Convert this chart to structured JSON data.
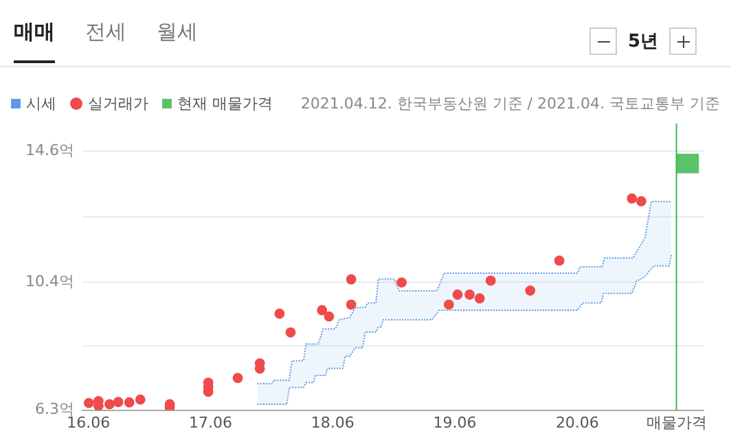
{
  "chart_data": {
    "type": "scatter",
    "annotations": [
      "매매",
      "전세",
      "월세",
      "5년",
      "2021.04.12. 한국부동산원 기준 / 2021.04. 국토교통부 기준"
    ],
    "xlim": [
      "2016-05-14",
      "2021-06-13"
    ],
    "xticks": [
      {
        "value": "2016-06",
        "label": "16.06"
      },
      {
        "value": "2017-06",
        "label": "17.06"
      },
      {
        "value": "2018-06",
        "label": "18.06"
      },
      {
        "value": "2019-06",
        "label": "19.06"
      },
      {
        "value": "2020-06",
        "label": "20.06"
      },
      {
        "value": "2021-03-24",
        "label": "매물가격"
      }
    ],
    "ylim": [
      6.3,
      14.6
    ],
    "yticks": [
      {
        "value": 6.3,
        "label": "6.3억"
      },
      {
        "value": 8.35,
        "label": null
      },
      {
        "value": 10.4,
        "label": "10.4억"
      },
      {
        "value": 12.5,
        "label": null
      },
      {
        "value": 14.6,
        "label": "14.6억"
      }
    ],
    "grid": "y",
    "legend": "top left",
    "ref_lines": [
      {
        "axis": "x",
        "value": "2021-03-24",
        "color": "#3cb94a"
      }
    ],
    "series": [
      {
        "name": "시세",
        "type": "line",
        "color": "#5b9be6",
        "line_style": "dotted",
        "x": [
          "2017-10-19",
          "2017-12-02",
          "2017-12-06",
          "2018-01-15",
          "2018-01-22",
          "2018-01-30",
          "2018-03-06",
          "2018-03-13",
          "2018-04-04",
          "2018-04-11",
          "2018-04-19",
          "2018-05-03",
          "2018-05-10",
          "2018-05-17",
          "2018-06-09",
          "2018-06-20",
          "2018-07-01",
          "2018-07-08",
          "2018-07-22",
          "2018-08-07",
          "2018-08-29",
          "2018-09-06",
          "2018-09-13",
          "2018-10-08",
          "2018-10-15",
          "2018-10-23",
          "2018-10-30",
          "2018-12-02",
          "2018-12-17",
          "2019-03-24",
          "2019-04-08",
          "2019-04-15",
          "2019-04-30",
          "2020-06-02",
          "2020-06-09",
          "2020-06-16",
          "2020-08-11",
          "2020-08-14",
          "2020-08-18",
          "2020-08-21",
          "2020-11-11",
          "2020-11-14",
          "2020-11-25",
          "2020-12-20",
          "2021-01-08",
          "2021-01-15",
          "2021-03-02",
          "2021-03-09"
        ],
        "values": [
          7.15,
          7.15,
          7.26,
          7.26,
          7.26,
          7.88,
          7.88,
          8.42,
          8.42,
          8.42,
          8.42,
          8.9,
          8.9,
          8.9,
          8.9,
          9.19,
          9.22,
          9.24,
          9.27,
          9.59,
          9.59,
          9.59,
          9.73,
          9.73,
          10.5,
          10.5,
          10.5,
          10.5,
          10.12,
          10.12,
          10.12,
          10.3,
          10.69,
          10.69,
          10.89,
          10.89,
          10.89,
          10.89,
          11.05,
          11.17,
          11.17,
          11.17,
          11.37,
          11.82,
          12.98,
          12.98,
          12.98,
          12.98
        ],
        "upper": [
          7.15,
          7.15,
          7.26,
          7.26,
          7.26,
          7.88,
          7.88,
          8.42,
          8.42,
          8.42,
          8.42,
          8.9,
          8.9,
          8.9,
          8.9,
          9.19,
          9.22,
          9.24,
          9.27,
          9.59,
          9.59,
          9.59,
          9.73,
          9.73,
          10.5,
          10.5,
          10.5,
          10.5,
          10.12,
          10.12,
          10.12,
          10.3,
          10.69,
          10.69,
          10.89,
          10.89,
          10.89,
          10.89,
          11.05,
          11.17,
          11.17,
          11.17,
          11.37,
          11.82,
          12.98,
          12.98,
          12.98,
          12.98
        ],
        "lower": [
          6.49,
          6.49,
          6.49,
          6.49,
          7.03,
          7.03,
          7.03,
          7.18,
          7.18,
          7.41,
          7.41,
          7.41,
          7.41,
          7.64,
          7.64,
          7.64,
          7.64,
          8.03,
          8.03,
          8.29,
          8.29,
          8.8,
          8.8,
          8.8,
          8.96,
          8.96,
          9.19,
          9.19,
          9.19,
          9.19,
          9.4,
          9.5,
          9.5,
          9.5,
          9.62,
          9.73,
          9.73,
          9.86,
          10.04,
          10.04,
          10.04,
          10.12,
          10.43,
          10.58,
          10.83,
          10.92,
          10.92,
          11.27
        ]
      },
      {
        "type": "line",
        "color": "#5b9be6",
        "line_style": "dotted",
        "x": [
          "2017-10-19",
          "2017-12-02",
          "2017-12-06",
          "2018-01-15",
          "2018-01-22",
          "2018-01-30",
          "2018-03-06",
          "2018-03-13",
          "2018-04-04",
          "2018-04-11",
          "2018-04-19",
          "2018-05-03",
          "2018-05-10",
          "2018-05-17",
          "2018-06-09",
          "2018-06-20",
          "2018-07-01",
          "2018-07-08",
          "2018-07-22",
          "2018-08-07",
          "2018-08-29",
          "2018-09-06",
          "2018-09-13",
          "2018-10-08",
          "2018-10-15",
          "2018-10-23",
          "2018-10-30",
          "2018-12-02",
          "2018-12-17",
          "2019-03-24",
          "2019-04-08",
          "2019-04-15",
          "2019-04-30",
          "2020-06-02",
          "2020-06-09",
          "2020-06-16",
          "2020-08-11",
          "2020-08-14",
          "2020-08-18",
          "2020-08-21",
          "2020-11-11",
          "2020-11-14",
          "2020-11-25",
          "2020-12-20",
          "2021-01-08",
          "2021-01-15",
          "2021-03-02",
          "2021-03-09"
        ],
        "values": [
          6.49,
          6.49,
          6.49,
          6.49,
          7.03,
          7.03,
          7.03,
          7.18,
          7.18,
          7.41,
          7.41,
          7.41,
          7.41,
          7.64,
          7.64,
          7.64,
          7.64,
          8.03,
          8.03,
          8.29,
          8.29,
          8.8,
          8.8,
          8.8,
          8.96,
          8.96,
          9.19,
          9.19,
          9.19,
          9.19,
          9.4,
          9.5,
          9.5,
          9.5,
          9.62,
          9.73,
          9.73,
          9.86,
          10.04,
          10.04,
          10.04,
          10.12,
          10.43,
          10.58,
          10.83,
          10.92,
          10.92,
          11.27
        ]
      },
      {
        "name": "실거래가",
        "color": "#f04a4a",
        "marker": "circle",
        "x": [
          "2016-06-02",
          "2016-07-01",
          "2016-07-01",
          "2016-08-03",
          "2016-08-29",
          "2016-10-01",
          "2016-11-03",
          "2017-01-30",
          "2017-01-30",
          "2017-05-25",
          "2017-05-25",
          "2017-05-25",
          "2017-08-21",
          "2017-10-26",
          "2017-10-26",
          "2017-12-24",
          "2018-01-26",
          "2018-04-30",
          "2018-05-21",
          "2018-07-26",
          "2018-07-26",
          "2018-12-24",
          "2019-05-14",
          "2019-06-09",
          "2019-07-15",
          "2019-08-14",
          "2019-09-16",
          "2020-01-12",
          "2020-04-08",
          "2020-11-11",
          "2020-12-09"
        ],
        "values": [
          6.53,
          6.59,
          6.44,
          6.49,
          6.56,
          6.55,
          6.64,
          6.49,
          6.39,
          7.18,
          7.03,
          6.89,
          7.33,
          7.8,
          7.63,
          9.39,
          8.79,
          9.5,
          9.3,
          10.49,
          9.68,
          10.39,
          9.68,
          10.0,
          10.0,
          9.88,
          10.45,
          10.13,
          11.09,
          13.08,
          12.99
        ]
      },
      {
        "name": "현재 매물가격",
        "type": "bar",
        "color": "#5cc26a",
        "x": [
          "2021-04-26"
        ],
        "base": [
          13.9
        ],
        "values": [
          0.6
        ]
      }
    ]
  }
}
